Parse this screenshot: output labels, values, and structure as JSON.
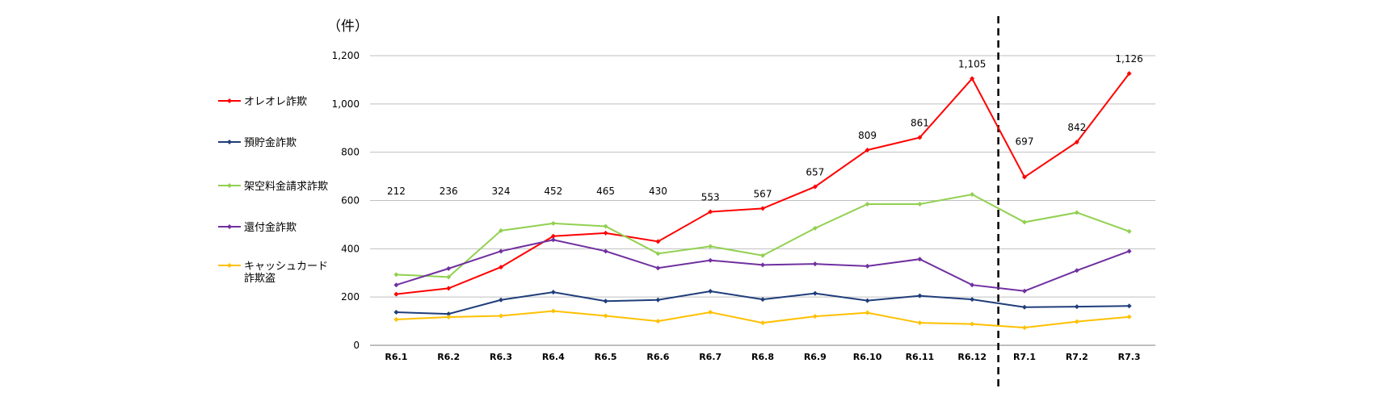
{
  "chart_data": {
    "type": "line",
    "unit_label": "（件）",
    "categories": [
      "R6.1",
      "R6.2",
      "R6.3",
      "R6.4",
      "R6.5",
      "R6.6",
      "R6.7",
      "R6.8",
      "R6.9",
      "R6.10",
      "R6.11",
      "R6.12",
      "R7.1",
      "R7.2",
      "R7.3"
    ],
    "y_ticks": [
      "0",
      "200",
      "400",
      "600",
      "800",
      "1,000",
      "1,200"
    ],
    "ylim": [
      0,
      1200
    ],
    "grid": true,
    "legend_position": "left",
    "divider_after_category": "R6.12",
    "series": [
      {
        "name": "オレオレ詐欺",
        "color": "#ff0000",
        "values": [
          212,
          236,
          324,
          452,
          465,
          430,
          553,
          567,
          657,
          809,
          861,
          1105,
          697,
          842,
          1126
        ],
        "labels": [
          "212",
          "236",
          "324",
          "452",
          "465",
          "430",
          "553",
          "567",
          "657",
          "809",
          "861",
          "1,105",
          "697",
          "842",
          "1,126"
        ]
      },
      {
        "name": "預貯金詐欺",
        "color": "#1f3d7a",
        "values": [
          137,
          130,
          188,
          220,
          183,
          188,
          224,
          190,
          215,
          185,
          205,
          190,
          158,
          160,
          163
        ]
      },
      {
        "name": "架空料金請求詐欺",
        "color": "#92d050",
        "values": [
          293,
          283,
          475,
          505,
          493,
          380,
          410,
          372,
          485,
          585,
          585,
          625,
          510,
          550,
          472
        ]
      },
      {
        "name": "還付金詐欺",
        "color": "#7030a0",
        "values": [
          250,
          318,
          390,
          437,
          390,
          320,
          352,
          333,
          337,
          328,
          357,
          250,
          225,
          310,
          390
        ]
      },
      {
        "name": "キャッシュカード詐欺盗",
        "name_lines": [
          "キャッシュカード",
          "詐欺盗"
        ],
        "color": "#ffc000",
        "values": [
          107,
          117,
          122,
          142,
          122,
          100,
          137,
          93,
          120,
          135,
          93,
          88,
          73,
          98,
          118
        ]
      }
    ]
  }
}
